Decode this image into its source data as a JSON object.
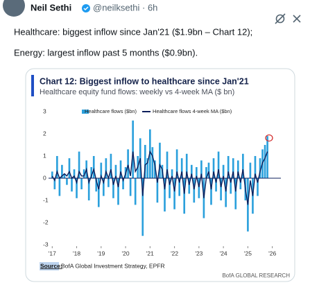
{
  "tweet": {
    "name": "Neil Sethi",
    "handle_time": "@neilksethi · 6h",
    "text_line_1": "Healthcare: biggest inflow since Jan'21 ($1.9bn – Chart 12);",
    "text_line_2": "Energy: largest inflow past 5 months ($0.9bn)."
  },
  "chart_data": {
    "type": "bar",
    "title": "Chart 12: Biggest inflow to healthcare since Jan'21",
    "subtitle": "Healthcare equity fund flows: weekly vs 4-week MA ($ bn)",
    "source_label": "Source:",
    "source": "BofA Global Investment Strategy, EPFR",
    "footer": "BofA GLOBAL RESEARCH",
    "x": [
      2017.0,
      2017.1,
      2017.2,
      2017.3,
      2017.4,
      2017.5,
      2017.6,
      2017.7,
      2017.8,
      2017.9,
      2018.0,
      2018.1,
      2018.2,
      2018.3,
      2018.4,
      2018.5,
      2018.6,
      2018.7,
      2018.8,
      2018.9,
      2019.0,
      2019.1,
      2019.2,
      2019.3,
      2019.4,
      2019.5,
      2019.6,
      2019.7,
      2019.8,
      2019.9,
      2020.0,
      2020.1,
      2020.2,
      2020.3,
      2020.4,
      2020.5,
      2020.6,
      2020.7,
      2020.8,
      2020.9,
      2021.0,
      2021.1,
      2021.2,
      2021.3,
      2021.4,
      2021.5,
      2021.6,
      2021.7,
      2021.8,
      2021.9,
      2022.0,
      2022.1,
      2022.2,
      2022.3,
      2022.4,
      2022.5,
      2022.6,
      2022.7,
      2022.8,
      2022.9,
      2023.0,
      2023.1,
      2023.2,
      2023.3,
      2023.4,
      2023.5,
      2023.6,
      2023.7,
      2023.8,
      2023.9,
      2024.0,
      2024.1,
      2024.2,
      2024.3,
      2024.4,
      2024.5,
      2024.6,
      2024.7,
      2024.8,
      2024.9,
      2025.0,
      2025.1,
      2025.2,
      2025.3,
      2025.4,
      2025.5,
      2025.6,
      2025.7,
      2025.8
    ],
    "series": [
      {
        "name": "Healthcare flows ($bn)",
        "type": "bar",
        "color": "#2ba0dc",
        "values": [
          0.3,
          -0.5,
          1.0,
          -0.8,
          0.6,
          0.2,
          -0.3,
          0.9,
          -0.6,
          0.4,
          -0.9,
          1.2,
          -0.5,
          0.4,
          0.8,
          -1.0,
          0.5,
          1.0,
          -0.6,
          -1.3,
          0.7,
          -0.8,
          0.9,
          -0.4,
          1.1,
          -0.9,
          0.6,
          -1.2,
          0.8,
          -0.5,
          0.5,
          1.3,
          -0.8,
          2.6,
          -1.2,
          1.0,
          1.8,
          -2.6,
          1.5,
          0.9,
          2.2,
          1.4,
          0.8,
          -1.1,
          1.6,
          0.6,
          -1.5,
          1.2,
          -0.9,
          0.4,
          -1.4,
          1.3,
          -0.8,
          0.9,
          -1.6,
          1.1,
          -0.7,
          0.6,
          -1.1,
          0.5,
          -0.9,
          0.8,
          -1.8,
          0.5,
          0.7,
          -1.2,
          0.9,
          -0.6,
          1.2,
          -1.0,
          0.6,
          -1.3,
          1.0,
          -0.7,
          0.9,
          -1.4,
          0.8,
          -0.5,
          1.1,
          -1.0,
          -2.4,
          0.7,
          -1.6,
          1.0,
          -0.8,
          0.9,
          1.3,
          1.5,
          1.9
        ]
      },
      {
        "name": "Healthcare flows 4-week MA ($bn)",
        "type": "line",
        "color": "#0b1e5b",
        "values": [
          0.1,
          -0.1,
          0.3,
          0.0,
          0.1,
          0.2,
          0.1,
          0.3,
          0.0,
          0.1,
          -0.2,
          0.3,
          0.1,
          0.1,
          0.4,
          -0.2,
          0.1,
          0.4,
          -0.1,
          -0.5,
          0.1,
          -0.2,
          0.3,
          0.0,
          0.4,
          -0.3,
          0.1,
          -0.4,
          0.3,
          -0.1,
          0.2,
          0.6,
          0.1,
          1.2,
          0.3,
          0.5,
          0.9,
          -0.8,
          0.6,
          0.7,
          1.2,
          1.0,
          0.6,
          -0.2,
          0.6,
          0.4,
          -0.5,
          0.4,
          -0.3,
          0.1,
          -0.6,
          0.3,
          -0.2,
          0.3,
          -0.7,
          0.3,
          -0.3,
          0.2,
          -0.5,
          0.1,
          -0.4,
          0.2,
          -0.9,
          0.0,
          0.3,
          -0.5,
          0.3,
          -0.2,
          0.4,
          -0.4,
          0.1,
          -0.6,
          0.3,
          -0.2,
          0.3,
          -0.6,
          0.3,
          -0.2,
          0.4,
          -0.5,
          -1.2,
          -0.1,
          -0.8,
          0.2,
          -0.2,
          0.3,
          0.7,
          0.9,
          1.2
        ]
      }
    ],
    "xlim": [
      2016.85,
      2026.35
    ],
    "xticks": [
      {
        "value": 2017,
        "label": "'17"
      },
      {
        "value": 2018,
        "label": "'18"
      },
      {
        "value": 2019,
        "label": "'19"
      },
      {
        "value": 2020,
        "label": "'20"
      },
      {
        "value": 2021,
        "label": "'21"
      },
      {
        "value": 2022,
        "label": "'22"
      },
      {
        "value": 2023,
        "label": "'23"
      },
      {
        "value": 2024,
        "label": "'24"
      },
      {
        "value": 2025,
        "label": "'25"
      },
      {
        "value": 2026,
        "label": "'26"
      }
    ],
    "ylim": [
      -3,
      3
    ],
    "yticks": [
      3,
      2,
      1,
      0,
      -1,
      -2,
      -3
    ],
    "grid": false
  }
}
